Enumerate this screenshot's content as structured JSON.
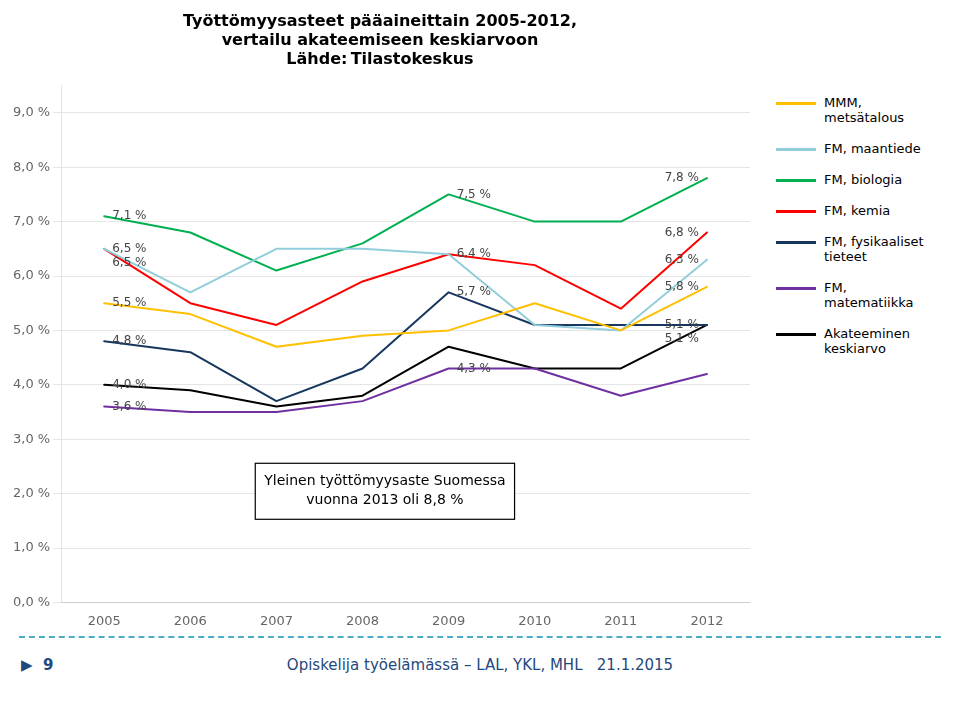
{
  "chart_data": {
    "type": "line",
    "title": [
      "Työttömyysasteet pääaineittain 2005-2012,",
      "vertailu akateemiseen keskiarvoon",
      "Lähde: Tilastokeskus"
    ],
    "categories": [
      2005,
      2006,
      2007,
      2008,
      2009,
      2010,
      2011,
      2012
    ],
    "series": [
      {
        "name": "MMM,\nmetsätalous",
        "color": "#FFC000",
        "values": [
          5.5,
          5.3,
          4.7,
          4.9,
          5.0,
          5.5,
          5.0,
          5.8
        ],
        "value_labels": [
          "5,5 %",
          null,
          null,
          null,
          null,
          null,
          null,
          "5,8 %"
        ]
      },
      {
        "name": "FM, maantiede",
        "color": "#92CDDC",
        "values": [
          6.5,
          5.7,
          6.5,
          6.5,
          6.4,
          5.1,
          5.0,
          6.3
        ],
        "value_labels": [
          "6,5 %",
          null,
          null,
          null,
          null,
          null,
          null,
          "6,3 %"
        ]
      },
      {
        "name": "FM, biologia",
        "color": "#00B050",
        "values": [
          7.1,
          6.8,
          6.1,
          6.6,
          7.5,
          7.0,
          7.0,
          7.8
        ],
        "value_labels": [
          "7,1 %",
          null,
          null,
          null,
          "7,5 %",
          null,
          null,
          "7,8 %"
        ]
      },
      {
        "name": "FM, kemia",
        "color": "#FF0000",
        "values": [
          6.5,
          5.5,
          5.1,
          5.9,
          6.4,
          6.2,
          5.4,
          6.8
        ],
        "value_labels": [
          "6,5 %",
          null,
          null,
          null,
          "6,4 %",
          null,
          null,
          "6,8 %"
        ]
      },
      {
        "name": "FM, fysikaaliset\ntieteet",
        "color": "#17375E",
        "values": [
          4.8,
          4.6,
          3.7,
          4.3,
          5.7,
          5.1,
          5.1,
          5.1
        ],
        "value_labels": [
          "4,8 %",
          null,
          null,
          null,
          "5,7 %",
          null,
          null,
          "5,1 %"
        ]
      },
      {
        "name": "FM,\nmatematiikka",
        "color": "#7030A0",
        "values": [
          3.6,
          3.5,
          3.5,
          3.7,
          4.3,
          4.3,
          3.8,
          4.2
        ],
        "value_labels": [
          "3,6 %",
          null,
          null,
          null,
          "4,3 %",
          null,
          null,
          null
        ]
      },
      {
        "name": "Akateeminen\nkeskiarvo",
        "color": "#000000",
        "values": [
          4.0,
          3.9,
          3.6,
          3.8,
          4.7,
          4.3,
          4.3,
          5.1
        ],
        "value_labels": [
          "4,0 %",
          null,
          null,
          null,
          null,
          null,
          null,
          "5,1 %"
        ]
      }
    ],
    "ylim": [
      0.0,
      9.5
    ],
    "yticks": [
      {
        "value": 0.0,
        "label": "0,0 %"
      },
      {
        "value": 1.0,
        "label": "1,0 %"
      },
      {
        "value": 2.0,
        "label": "2,0 %"
      },
      {
        "value": 3.0,
        "label": "3,0 %"
      },
      {
        "value": 4.0,
        "label": "4,0 %"
      },
      {
        "value": 5.0,
        "label": "5,0 %"
      },
      {
        "value": 6.0,
        "label": "6,0 %"
      },
      {
        "value": 7.0,
        "label": "7,0 %"
      },
      {
        "value": 8.0,
        "label": "8,0 %"
      },
      {
        "value": 9.0,
        "label": "9,0 %"
      }
    ],
    "grid": true,
    "legend": "right",
    "data_labels": true,
    "annotations": [
      "Yleinen työttömyysaste Suomessa\nvuonna 2013 oli 8,8 %"
    ],
    "footer": [
      "▶",
      "9",
      "Opiskelija työelämässä – LAL, YKL, MHL",
      "21.1.2015"
    ]
  }
}
